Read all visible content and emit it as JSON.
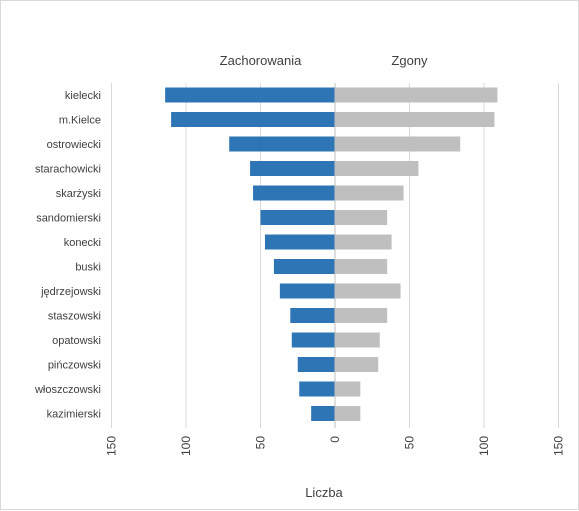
{
  "chart_data": {
    "type": "bar",
    "orientation": "horizontal-butterfly",
    "categories": [
      "kielecki",
      "m.Kielce",
      "ostrowiecki",
      "starachowicki",
      "skarżyski",
      "sandomierski",
      "konecki",
      "buski",
      "jędrzejowski",
      "staszowski",
      "opatowski",
      "pińczowski",
      "włoszczowski",
      "kazimierski"
    ],
    "series": [
      {
        "name": "Zachorowania",
        "side": "left",
        "color": "#2e75b6",
        "values": [
          114,
          110,
          71,
          57,
          55,
          50,
          47,
          41,
          37,
          30,
          29,
          25,
          24,
          16
        ]
      },
      {
        "name": "Zgony",
        "side": "right",
        "color": "#bfbfbf",
        "values": [
          109,
          107,
          84,
          56,
          46,
          35,
          38,
          35,
          44,
          35,
          30,
          29,
          17,
          17
        ]
      }
    ],
    "xlabel": "Liczba",
    "xlim": [
      -150,
      150
    ],
    "xticks": [
      -150,
      -100,
      -50,
      0,
      50,
      100,
      150
    ],
    "xtick_labels": [
      "150",
      "100",
      "50",
      "0",
      "50",
      "100",
      "150"
    ],
    "grid": "vertical",
    "legend": "none"
  }
}
